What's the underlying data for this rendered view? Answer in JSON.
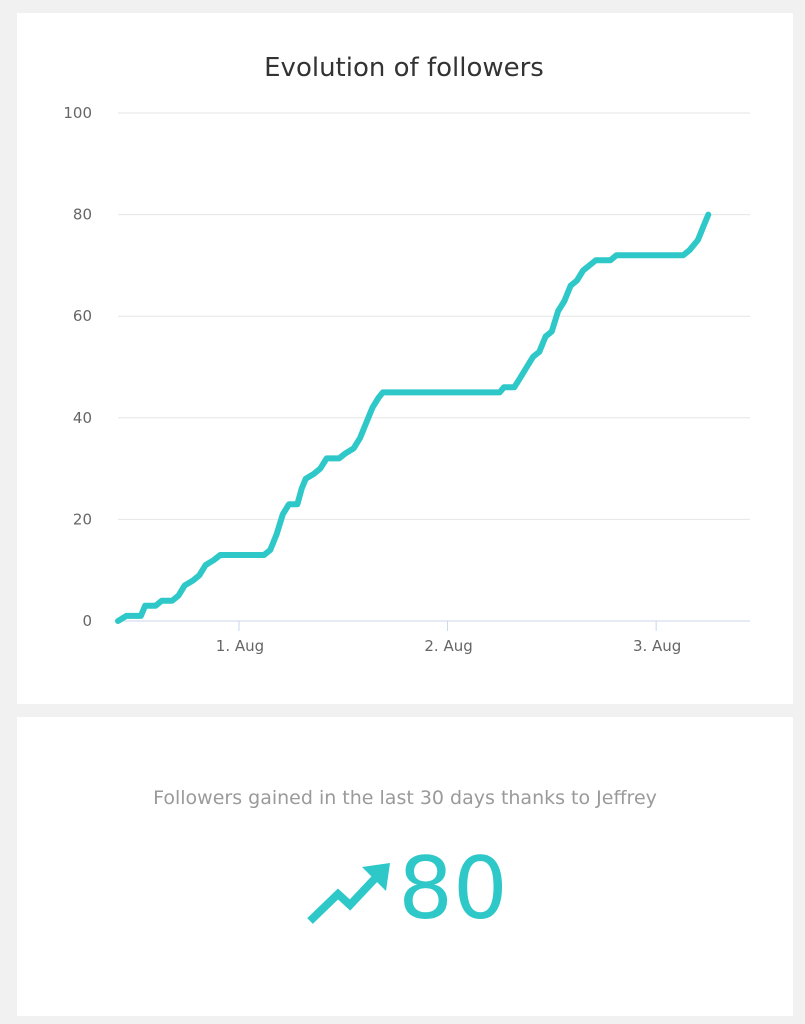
{
  "colors": {
    "accent": "#2ec8c8",
    "grid": "#e6e6e6",
    "axis": "#ccd6eb",
    "text_muted": "#9a9a9a",
    "title": "#333333"
  },
  "chart_data": {
    "type": "line",
    "title": "Evolution of followers",
    "xlabel": "",
    "ylabel": "",
    "ylim": [
      0,
      100
    ],
    "yticks": [
      0,
      20,
      40,
      60,
      80,
      100
    ],
    "xlim": [
      0.42,
      3.45
    ],
    "xticks": [
      {
        "value": 1,
        "label": "1. Aug"
      },
      {
        "value": 2,
        "label": "2. Aug"
      },
      {
        "value": 3,
        "label": "3. Aug"
      }
    ],
    "grid": true,
    "legend": false,
    "series": [
      {
        "color": "#2ec8c8",
        "points": [
          [
            0.42,
            0
          ],
          [
            0.46,
            1
          ],
          [
            0.5,
            1
          ],
          [
            0.53,
            1
          ],
          [
            0.55,
            3
          ],
          [
            0.58,
            3
          ],
          [
            0.6,
            3
          ],
          [
            0.63,
            4
          ],
          [
            0.66,
            4
          ],
          [
            0.68,
            4
          ],
          [
            0.71,
            5
          ],
          [
            0.74,
            7
          ],
          [
            0.78,
            8
          ],
          [
            0.81,
            9
          ],
          [
            0.84,
            11
          ],
          [
            0.88,
            12
          ],
          [
            0.91,
            13
          ],
          [
            0.95,
            13
          ],
          [
            1.0,
            13
          ],
          [
            1.05,
            13
          ],
          [
            1.1,
            13
          ],
          [
            1.12,
            13
          ],
          [
            1.15,
            14
          ],
          [
            1.18,
            17
          ],
          [
            1.21,
            21
          ],
          [
            1.24,
            23
          ],
          [
            1.28,
            23
          ],
          [
            1.3,
            26
          ],
          [
            1.32,
            28
          ],
          [
            1.36,
            29
          ],
          [
            1.39,
            30
          ],
          [
            1.42,
            32
          ],
          [
            1.45,
            32
          ],
          [
            1.48,
            32
          ],
          [
            1.51,
            33
          ],
          [
            1.55,
            34
          ],
          [
            1.58,
            36
          ],
          [
            1.61,
            39
          ],
          [
            1.64,
            42
          ],
          [
            1.67,
            44
          ],
          [
            1.69,
            45
          ],
          [
            1.75,
            45
          ],
          [
            1.8,
            45
          ],
          [
            1.85,
            45
          ],
          [
            1.9,
            45
          ],
          [
            1.95,
            45
          ],
          [
            2.0,
            45
          ],
          [
            2.05,
            45
          ],
          [
            2.1,
            45
          ],
          [
            2.15,
            45
          ],
          [
            2.2,
            45
          ],
          [
            2.25,
            45
          ],
          [
            2.27,
            46
          ],
          [
            2.3,
            46
          ],
          [
            2.32,
            46
          ],
          [
            2.35,
            48
          ],
          [
            2.38,
            50
          ],
          [
            2.41,
            52
          ],
          [
            2.44,
            53
          ],
          [
            2.47,
            56
          ],
          [
            2.5,
            57
          ],
          [
            2.53,
            61
          ],
          [
            2.56,
            63
          ],
          [
            2.59,
            66
          ],
          [
            2.62,
            67
          ],
          [
            2.65,
            69
          ],
          [
            2.68,
            70
          ],
          [
            2.71,
            71
          ],
          [
            2.75,
            71
          ],
          [
            2.78,
            71
          ],
          [
            2.81,
            72
          ],
          [
            2.85,
            72
          ],
          [
            2.9,
            72
          ],
          [
            2.95,
            72
          ],
          [
            3.0,
            72
          ],
          [
            3.05,
            72
          ],
          [
            3.1,
            72
          ],
          [
            3.13,
            72
          ],
          [
            3.16,
            73
          ],
          [
            3.2,
            75
          ],
          [
            3.23,
            78
          ],
          [
            3.25,
            80
          ]
        ]
      }
    ]
  },
  "stat": {
    "caption": "Followers gained in the last 30 days thanks to Jeffrey",
    "value": "80",
    "icon": "trending-up-icon"
  }
}
